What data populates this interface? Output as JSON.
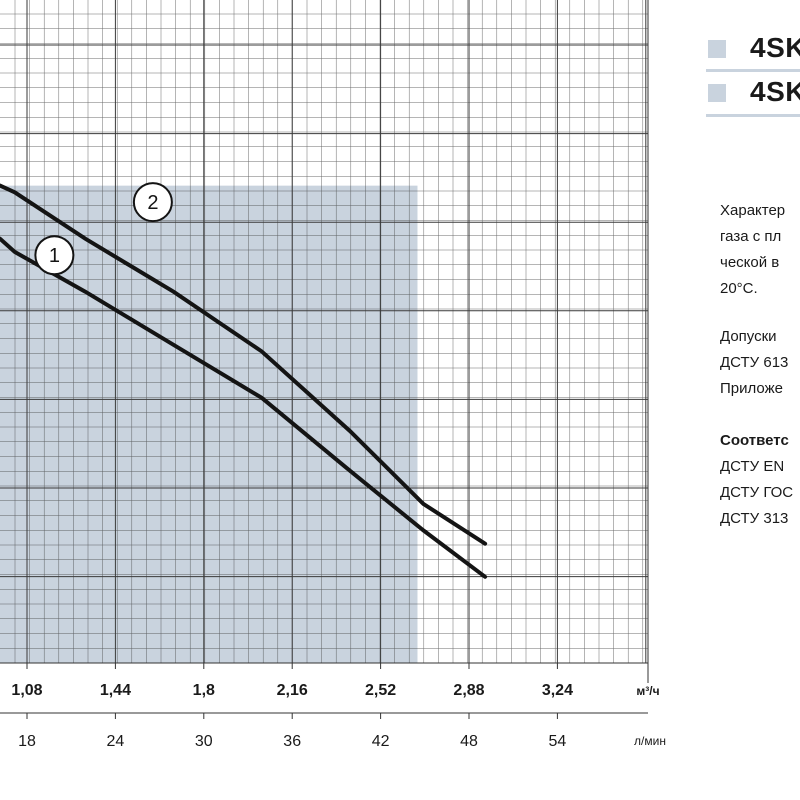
{
  "chart_data": {
    "type": "line",
    "x_primary": {
      "unit": "м³/ч",
      "ticks": [
        "1,08",
        "1,44",
        "1,8",
        "2,16",
        "2,52",
        "2,88",
        "3,24"
      ]
    },
    "x_secondary": {
      "unit": "л/мин",
      "ticks": [
        "18",
        "24",
        "30",
        "36",
        "42",
        "48",
        "54"
      ]
    },
    "x_visible_range_lpm": [
      16.2,
      60
    ],
    "y_range_relative": [
      0,
      1
    ],
    "operating_range_lpm": [
      16.2,
      44.6
    ],
    "series": [
      {
        "name": "1",
        "points": [
          [
            16.2,
            0.64
          ],
          [
            17.2,
            0.62
          ],
          [
            22,
            0.56
          ],
          [
            28,
            0.48
          ],
          [
            34,
            0.4
          ],
          [
            40,
            0.29
          ],
          [
            45,
            0.2
          ],
          [
            49.2,
            0.13
          ]
        ]
      },
      {
        "name": "2",
        "points": [
          [
            16.2,
            0.72
          ],
          [
            17.2,
            0.71
          ],
          [
            22,
            0.64
          ],
          [
            28,
            0.56
          ],
          [
            34,
            0.47
          ],
          [
            40,
            0.35
          ],
          [
            45,
            0.24
          ],
          [
            49.2,
            0.18
          ]
        ]
      }
    ],
    "grid": true
  },
  "colors": {
    "fill": "#c9d3de",
    "grid": "#3a3a3a",
    "curve": "#141414"
  },
  "legend": [
    {
      "text": "4SK"
    },
    {
      "text": "4SK"
    }
  ],
  "description": {
    "p1": [
      "Характер",
      "газа с пл",
      "ческой в",
      "20°С."
    ],
    "p2": [
      "Допуски",
      "ДСТУ 613",
      "Приложе"
    ],
    "p3_title": "Соответс",
    "p3": [
      "ДСТУ EN",
      "ДСТУ ГОС",
      "ДСТУ 313"
    ]
  }
}
